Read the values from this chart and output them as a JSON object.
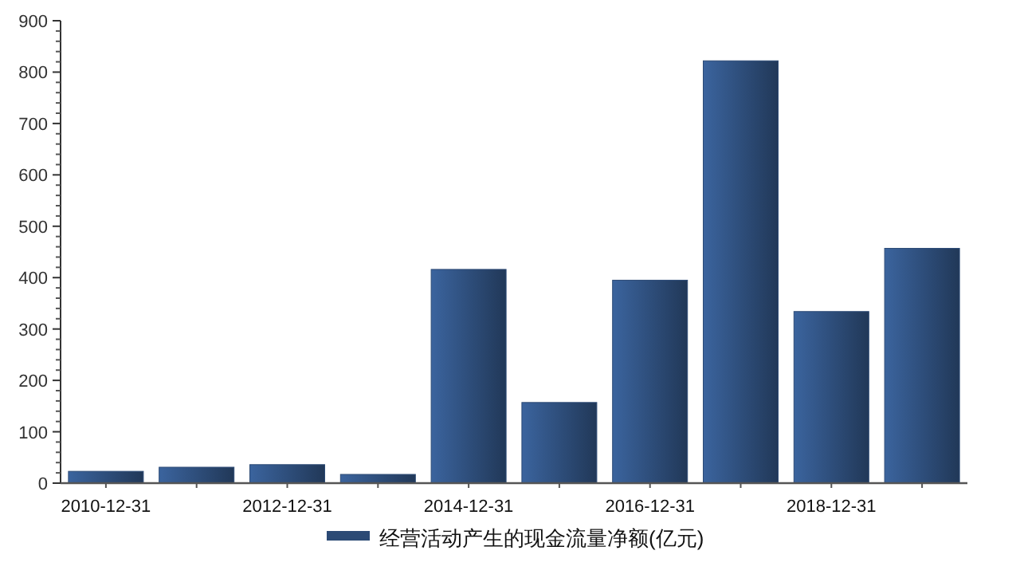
{
  "chart_data": {
    "type": "bar",
    "categories": [
      "2010-12-31",
      null,
      "2012-12-31",
      null,
      "2014-12-31",
      null,
      "2016-12-31",
      null,
      "2018-12-31",
      null
    ],
    "series": [
      {
        "name": "经营活动产生的现金流量净额(亿元)",
        "color": "#2c4a75",
        "values": [
          23,
          31,
          36,
          17,
          416,
          157,
          395,
          822,
          334,
          457
        ]
      }
    ],
    "ylim": [
      0,
      900
    ],
    "yticks": [
      0,
      100,
      200,
      300,
      400,
      500,
      600,
      700,
      800,
      900
    ],
    "grid": false,
    "legend": "bottom"
  }
}
